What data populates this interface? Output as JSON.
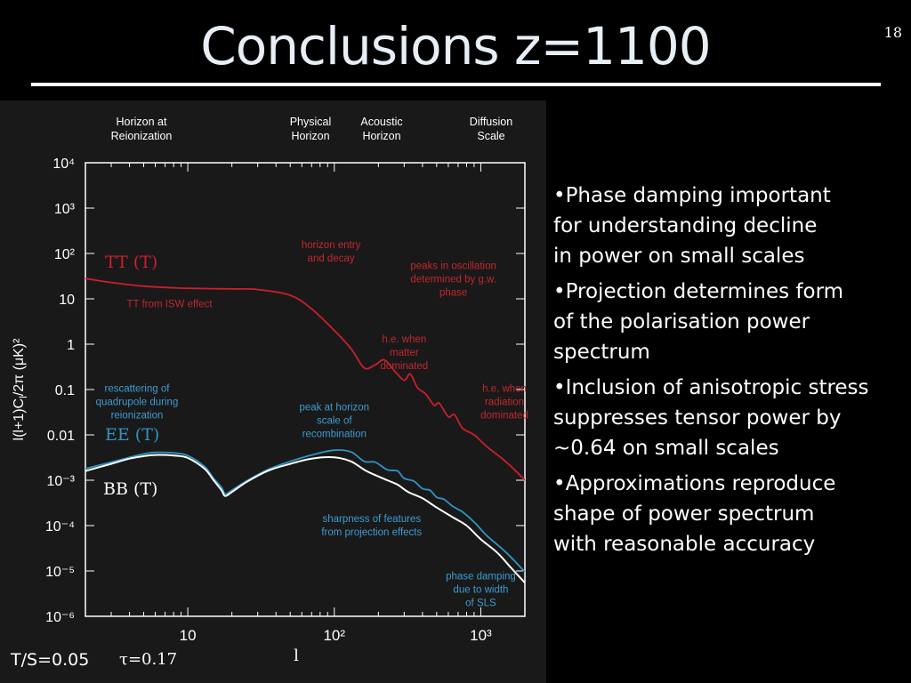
{
  "slide": {
    "title": "Conclusions z=1100",
    "page_number": "18",
    "bullets": [
      "•Phase damping important\n for understanding decline\nin power on small scales",
      "•Projection determines form\nof the polarisation power\nspectrum",
      "•Inclusion of anisotropic stress\n suppresses tensor power by\n~0.64 on small scales",
      "•Approximations reproduce\nshape of power spectrum\nwith reasonable accuracy"
    ],
    "params": {
      "ts": "T/S=0.05",
      "tau": "τ=0.17"
    }
  },
  "colors": {
    "tt": "#cc1f2e",
    "ee": "#2f94c4",
    "bb": "#ffffff",
    "annotation_red": "#c2272f",
    "annotation_blue": "#3d9bd0"
  },
  "chart_data": {
    "type": "line",
    "xlabel": "l",
    "ylabel": "l(l+1)C",
    "ylabel_sub": "l",
    "ylabel_tail": "/2π (μK)²",
    "x_scale": "log",
    "y_scale": "log",
    "xlim": [
      2,
      2000
    ],
    "ylim": [
      1e-06,
      10000
    ],
    "x_ticks": [
      {
        "v": 10,
        "label": "10"
      },
      {
        "v": 100,
        "label": "10²"
      },
      {
        "v": 1000,
        "label": "10³"
      }
    ],
    "y_ticks": [
      {
        "v": 10000,
        "label": "10⁴"
      },
      {
        "v": 1000,
        "label": "10³"
      },
      {
        "v": 100,
        "label": "10²"
      },
      {
        "v": 10,
        "label": "10"
      },
      {
        "v": 1,
        "label": "1"
      },
      {
        "v": 0.1,
        "label": "0.1"
      },
      {
        "v": 0.01,
        "label": "0.01"
      },
      {
        "v": 0.001,
        "label": "10⁻³"
      },
      {
        "v": 0.0001,
        "label": "10⁻⁴"
      },
      {
        "v": 1e-05,
        "label": "10⁻⁵"
      },
      {
        "v": 1e-06,
        "label": "10⁻⁶"
      }
    ],
    "scales": [
      {
        "label": "Horizon at\nReionization",
        "l": 5
      },
      {
        "label": "Physical\nHorizon",
        "l": 70
      },
      {
        "label": "Acoustic\nHorizon",
        "l": 130
      },
      {
        "label": "Diffusion\nScale",
        "l": 1000
      }
    ],
    "series": [
      {
        "name": "TT (T)",
        "key": "tt",
        "x": [
          2,
          3,
          5,
          8,
          10,
          20,
          30,
          50,
          70,
          100,
          130,
          160,
          190,
          220,
          260,
          300,
          330,
          370,
          420,
          480,
          520,
          600,
          660,
          750,
          900,
          1100,
          1400,
          1700,
          2000
        ],
        "y": [
          28,
          23,
          19,
          17.5,
          17,
          16.5,
          16,
          12,
          6,
          2,
          0.8,
          0.3,
          0.35,
          0.45,
          0.25,
          0.16,
          0.22,
          0.11,
          0.08,
          0.045,
          0.05,
          0.025,
          0.028,
          0.014,
          0.01,
          0.0055,
          0.003,
          0.0017,
          0.001
        ]
      },
      {
        "name": "EE (T)",
        "key": "ee",
        "x": [
          2,
          3,
          4,
          5,
          6,
          8,
          10,
          13,
          15,
          17,
          18,
          20,
          25,
          35,
          50,
          70,
          100,
          130,
          160,
          190,
          230,
          270,
          300,
          350,
          400,
          450,
          500,
          560,
          650,
          750,
          900,
          1100,
          1500,
          2000
        ],
        "y": [
          0.0018,
          0.0025,
          0.0032,
          0.0038,
          0.0041,
          0.004,
          0.0035,
          0.002,
          0.0011,
          0.0007,
          0.0005,
          0.0006,
          0.00095,
          0.0017,
          0.0026,
          0.0036,
          0.0046,
          0.0042,
          0.0026,
          0.0025,
          0.0017,
          0.0016,
          0.0011,
          0.00095,
          0.00065,
          0.0006,
          0.00042,
          0.00038,
          0.00026,
          0.0002,
          0.00012,
          6e-05,
          2.5e-05,
          9.5e-06
        ]
      },
      {
        "name": "BB (T)",
        "key": "bb",
        "x": [
          2,
          3,
          4,
          5,
          6,
          8,
          10,
          13,
          15,
          17,
          18,
          20,
          25,
          35,
          50,
          70,
          100,
          130,
          160,
          190,
          230,
          270,
          320,
          400,
          500,
          650,
          800,
          1000,
          1300,
          1600,
          2000
        ],
        "y": [
          0.0016,
          0.0023,
          0.003,
          0.0034,
          0.0036,
          0.0035,
          0.0031,
          0.0018,
          0.001,
          0.0006,
          0.00045,
          0.00055,
          0.0009,
          0.0016,
          0.0023,
          0.003,
          0.0032,
          0.0026,
          0.0017,
          0.0013,
          0.001,
          0.0008,
          0.00055,
          0.0004,
          0.00025,
          0.00015,
          0.0001,
          5e-05,
          2.5e-05,
          1.2e-05,
          5.5e-06
        ]
      }
    ],
    "annotations": [
      {
        "text": "horizon entry\nand decay",
        "color": "red",
        "l": 95,
        "v": 130
      },
      {
        "text": "peaks in oscillation\ndetermined by g.w.\nphase",
        "color": "red",
        "l": 650,
        "v": 45
      },
      {
        "text": "TT  from ISW effect",
        "color": "red",
        "l": 7.5,
        "v": 6.5
      },
      {
        "text": "h.e. when\nmatter\ndominated",
        "color": "red",
        "l": 300,
        "v": 1.1
      },
      {
        "text": "h.e. when\nradiation\ndominated",
        "color": "red",
        "l": 1450,
        "v": 0.09
      },
      {
        "text": "rescattering of\nquadrupole during\nreionization",
        "color": "blue",
        "l": 4.5,
        "v": 0.09
      },
      {
        "text": "peak at horizon\nscale of\nrecombination",
        "color": "blue",
        "l": 100,
        "v": 0.035
      },
      {
        "text": "sharpness of features\nfrom projection effects",
        "color": "blue",
        "l": 180,
        "v": 0.00012
      },
      {
        "text": "phase damping\ndue to width\nof SLS",
        "color": "blue",
        "l": 1000,
        "v": 6.5e-06
      }
    ]
  }
}
